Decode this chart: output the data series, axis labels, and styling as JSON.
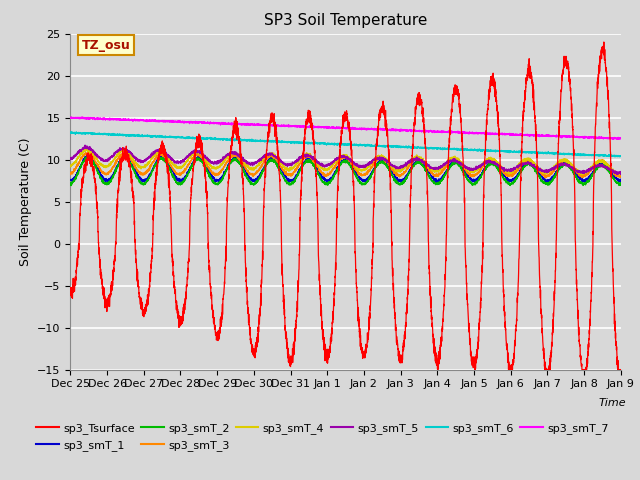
{
  "title": "SP3 Soil Temperature",
  "ylabel": "Soil Temperature (C)",
  "xlabel": "Time",
  "tz_label": "TZ_osu",
  "ylim": [
    -15,
    25
  ],
  "yticks": [
    -15,
    -10,
    -5,
    0,
    5,
    10,
    15,
    20,
    25
  ],
  "x_tick_labels": [
    "Dec 25",
    "Dec 26",
    "Dec 27",
    "Dec 28",
    "Dec 29",
    "Dec 30",
    "Dec 31",
    "Jan 1",
    "Jan 2",
    "Jan 3",
    "Jan 4",
    "Jan 5",
    "Jan 6",
    "Jan 7",
    "Jan 8",
    "Jan 9"
  ],
  "series_colors": {
    "sp3_Tsurface": "#ff0000",
    "sp3_smT_1": "#0000cc",
    "sp3_smT_2": "#00bb00",
    "sp3_smT_3": "#ff8800",
    "sp3_smT_4": "#ddcc00",
    "sp3_smT_5": "#9900aa",
    "sp3_smT_6": "#00cccc",
    "sp3_smT_7": "#ff00ff"
  },
  "background_color": "#d8d8d8",
  "n_days": 15,
  "pts_per_day": 288
}
